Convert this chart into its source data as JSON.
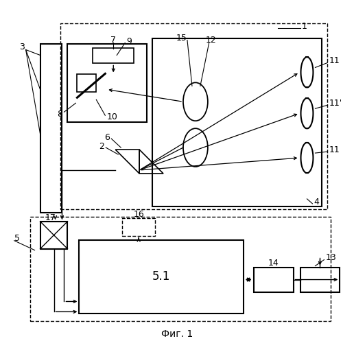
{
  "title": "Фиг. 1",
  "bg": "#ffffff",
  "lc": "#000000",
  "figsize": [
    5.16,
    5.0
  ],
  "dpi": 100
}
